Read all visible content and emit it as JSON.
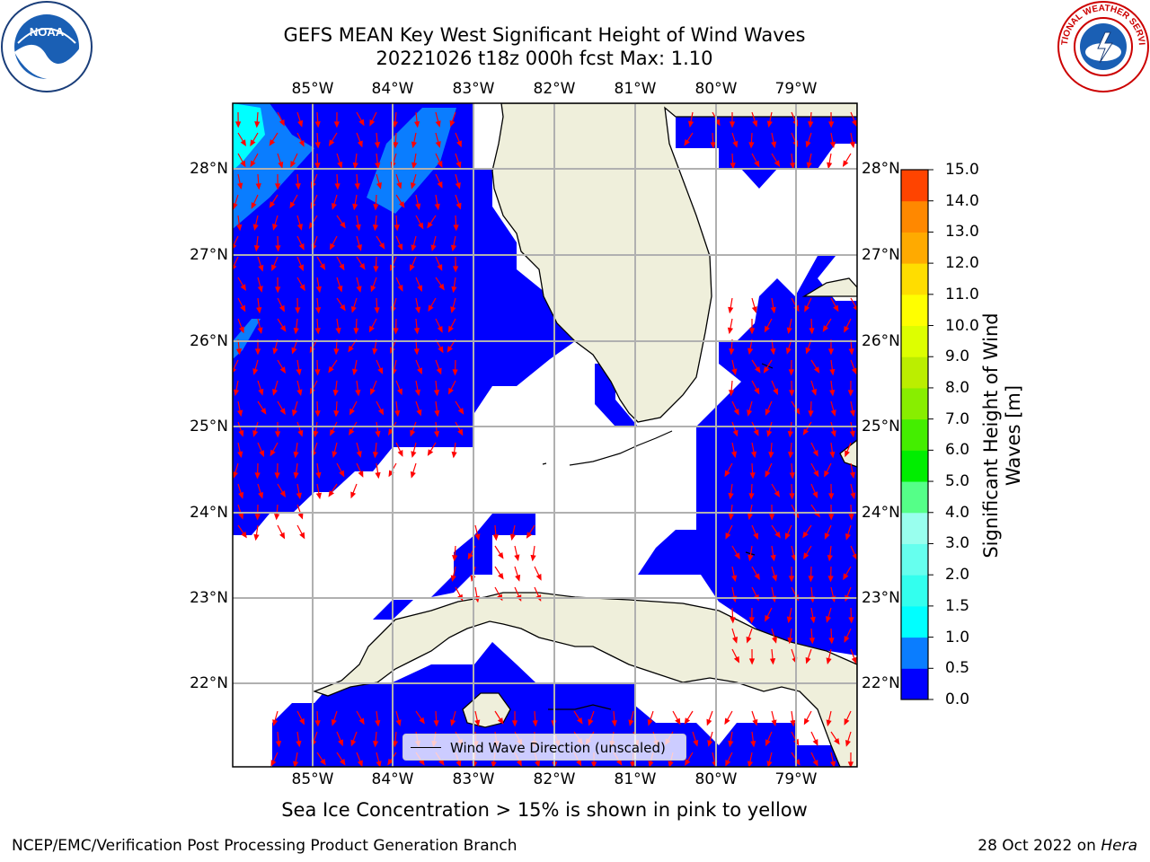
{
  "header": {
    "title_line1": "GEFS MEAN Key West Significant Height of Wind Waves",
    "title_line2": "20221026 t18z 000h fcst   Max: 1.10"
  },
  "logos": {
    "left": {
      "icon": "noaa-logo",
      "text": "NOAA"
    },
    "right": {
      "icon": "national-weather-service-logo",
      "text": "NATIONAL WEATHER SERVICE"
    }
  },
  "map": {
    "lon_labels": [
      "85°W",
      "84°W",
      "83°W",
      "82°W",
      "81°W",
      "80°W",
      "79°W"
    ],
    "lat_labels": [
      "28°N",
      "27°N",
      "26°N",
      "25°N",
      "24°N",
      "23°N",
      "22°N"
    ],
    "lon_range": [
      -86.0,
      -78.3
    ],
    "lat_range": [
      21.0,
      28.75
    ],
    "land_color": "#efefdb",
    "ocean_no_data_color": "#ffffff",
    "arrow_color": "#ff0000",
    "grid": true
  },
  "colorbar": {
    "label": "Significant Height of Wind Waves [m]",
    "ticks": [
      "0.0",
      "0.5",
      "1.0",
      "1.5",
      "2.0",
      "3.0",
      "4.0",
      "5.0",
      "6.0",
      "7.0",
      "8.0",
      "9.0",
      "10.0",
      "11.0",
      "12.0",
      "13.0",
      "14.0",
      "15.0"
    ],
    "colors": [
      "#0000ff",
      "#0a7dff",
      "#00ffff",
      "#33ffee",
      "#66ffee",
      "#99ffee",
      "#55ff88",
      "#00ee00",
      "#44ee00",
      "#88ee00",
      "#bbee00",
      "#ddff00",
      "#ffff00",
      "#ffdd00",
      "#ffaa00",
      "#ff8800",
      "#ff4400",
      "#ff0000"
    ]
  },
  "legend": {
    "label": "Wind Wave Direction (unscaled)"
  },
  "subtitle": "Sea Ice Concentration > 15% is shown in pink to yellow",
  "footer": {
    "left": "NCEP/EMC/Verification Post Processing Product Generation Branch",
    "right_date": "28 Oct 2022 on ",
    "right_host": "Hera"
  }
}
